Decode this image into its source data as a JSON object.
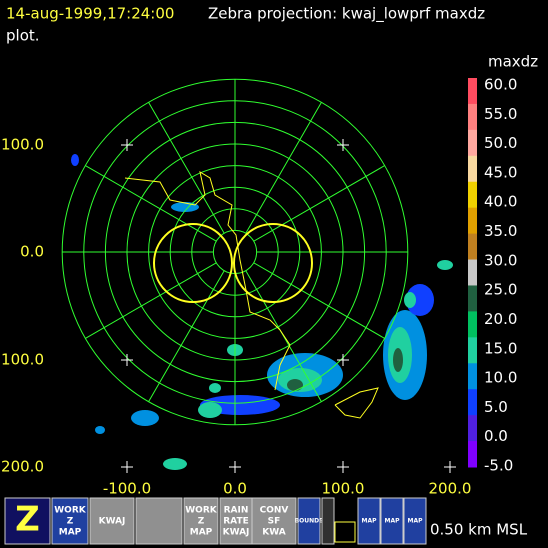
{
  "header": {
    "timestamp": "14-aug-1999,17:24:00",
    "title": "Zebra projection: kwaj_lowprf maxdz",
    "title_cont": "plot."
  },
  "plot": {
    "x_labels": [
      "-100.0",
      "0.0",
      "100.0",
      "200.0"
    ],
    "y_labels": [
      "100.0",
      "0.0",
      "100.0",
      "200.0"
    ]
  },
  "colorbar": {
    "field": "maxdz",
    "labels": [
      "60.0",
      "55.0",
      "50.0",
      "45.0",
      "40.0",
      "35.0",
      "30.0",
      "25.0",
      "20.0",
      "15.0",
      "10.0",
      "5.0",
      "0.0",
      "-5.0"
    ],
    "colors": [
      "#ff4c60",
      "#ff8080",
      "#ffa8a0",
      "#f8d8a0",
      "#f0d000",
      "#e0a000",
      "#c08020",
      "#c8c8c8",
      "#206040",
      "#00c060",
      "#20d0a0",
      "#0090e0",
      "#1040ff",
      "#5020e0",
      "#8000ff"
    ]
  },
  "toolbar": {
    "buttons": [
      {
        "lines": [
          "Z"
        ]
      },
      {
        "lines": [
          "WORK",
          "Z",
          "MAP"
        ]
      },
      {
        "lines": [
          "KWAJ"
        ]
      },
      {
        "lines": []
      },
      {
        "lines": [
          "WORK",
          "Z",
          "MAP"
        ]
      },
      {
        "lines": [
          "RAIN",
          "RATE",
          "KWAJ"
        ]
      },
      {
        "lines": [
          "CONV",
          "SF",
          "KWA"
        ]
      },
      {
        "lines": [
          "BOUNDS"
        ]
      },
      {
        "lines": []
      },
      {
        "lines": [
          "MAP"
        ]
      },
      {
        "lines": [
          "MAP"
        ]
      },
      {
        "lines": [
          "MAP"
        ]
      }
    ],
    "altitude": "0.50 km MSL"
  }
}
